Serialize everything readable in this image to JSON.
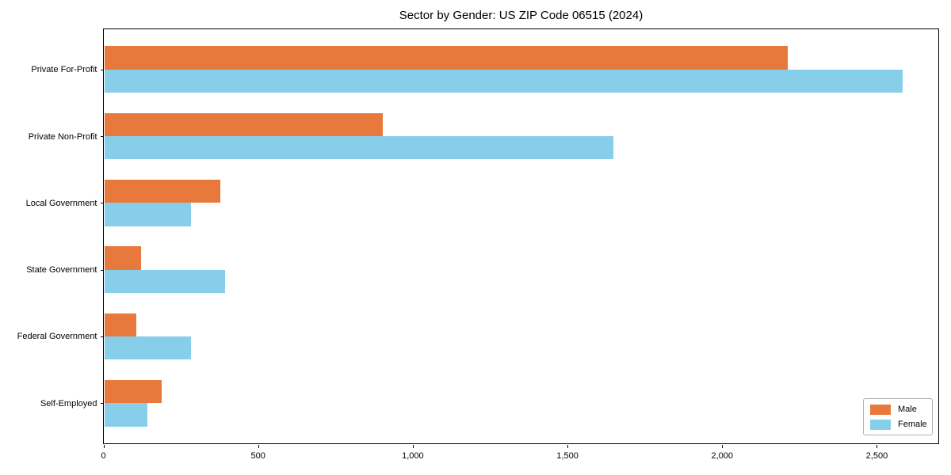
{
  "chart_data": {
    "type": "bar",
    "orientation": "horizontal",
    "title": "Sector by Gender: US ZIP Code 06515 (2024)",
    "categories": [
      "Private For-Profit",
      "Private Non-Profit",
      "Local Government",
      "State Government",
      "Federal Government",
      "Self-Employed"
    ],
    "series": [
      {
        "name": "Male",
        "color": "#E8793D",
        "values": [
          2210,
          900,
          375,
          120,
          105,
          185
        ]
      },
      {
        "name": "Female",
        "color": "#87CEEB",
        "values": [
          2580,
          1645,
          280,
          390,
          280,
          140
        ]
      }
    ],
    "xlabel": "",
    "ylabel": "",
    "xlim": [
      0,
      2700
    ],
    "x_ticks": [
      0,
      500,
      1000,
      1500,
      2000,
      2500
    ],
    "x_tick_labels": [
      "0",
      "500",
      "1,000",
      "1,500",
      "2,000",
      "2,500"
    ],
    "grid": false,
    "legend": {
      "position": "lower right",
      "entries": [
        "Male",
        "Female"
      ]
    }
  }
}
